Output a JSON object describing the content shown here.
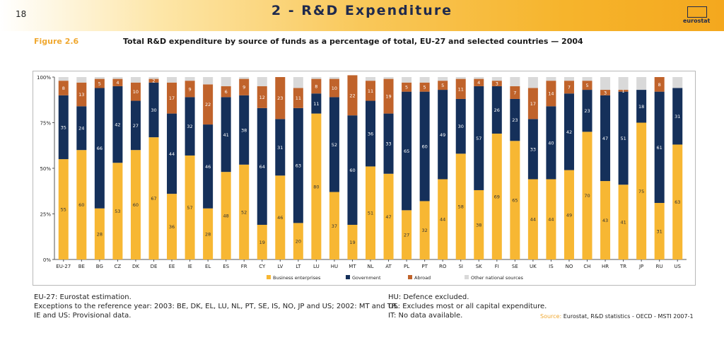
{
  "header": {
    "page_number": "18",
    "title": "2 - R&D Expenditure",
    "logo_text": "eurostat"
  },
  "figure": {
    "label": "Figure 2.6",
    "title": "Total R&D expenditure by source of funds as a percentage of total, EU-27 and selected countries — 2004"
  },
  "colors": {
    "business": "#f7b733",
    "government": "#15305a",
    "abroad": "#c0632b",
    "other": "#d9d9d9",
    "accent": "#f0a830"
  },
  "chart_data": {
    "type": "bar",
    "stacked": true,
    "categories": [
      "EU-27",
      "BE",
      "BG",
      "CZ",
      "DK",
      "DE",
      "EE",
      "IE",
      "EL",
      "ES",
      "FR",
      "CY",
      "LV",
      "LT",
      "LU",
      "HU",
      "MT",
      "NL",
      "AT",
      "PL",
      "PT",
      "RO",
      "SI",
      "SK",
      "FI",
      "SE",
      "UK",
      "IS",
      "NO",
      "CH",
      "HR",
      "TR",
      "JP",
      "RU",
      "US"
    ],
    "series": [
      {
        "name": "Business enterprises",
        "values": [
          55,
          60,
          28,
          53,
          60,
          67,
          36,
          57,
          28,
          48,
          52,
          19,
          46,
          20,
          80,
          37,
          19,
          51,
          47,
          27,
          32,
          44,
          58,
          38,
          69,
          65,
          44,
          44,
          49,
          70,
          43,
          41,
          75,
          31,
          63
        ]
      },
      {
        "name": "Government",
        "values": [
          35,
          24,
          66,
          42,
          27,
          30,
          44,
          32,
          46,
          41,
          38,
          64,
          31,
          63,
          11,
          52,
          60,
          36,
          33,
          65,
          60,
          49,
          30,
          57,
          26,
          23,
          33,
          40,
          42,
          23,
          47,
          51,
          18,
          61,
          31
        ]
      },
      {
        "name": "Abroad",
        "values": [
          8,
          13,
          5,
          4,
          10,
          2,
          17,
          9,
          22,
          6,
          9,
          12,
          23,
          11,
          8,
          10,
          22,
          11,
          19,
          5,
          5,
          5,
          11,
          4,
          3,
          7,
          17,
          14,
          7,
          5,
          3,
          1,
          0,
          8,
          0
        ]
      },
      {
        "name": "Other national sources",
        "values": [
          2,
          3,
          1,
          1,
          3,
          1,
          3,
          2,
          4,
          5,
          1,
          5,
          0,
          6,
          1,
          1,
          0,
          2,
          1,
          3,
          3,
          2,
          1,
          1,
          2,
          5,
          6,
          2,
          2,
          2,
          7,
          7,
          7,
          0,
          6
        ]
      }
    ],
    "value_labels": [
      [
        "55",
        "60",
        "28",
        "53",
        "60",
        "67",
        "36",
        "57",
        "28",
        "48",
        "52",
        "19",
        "46",
        "20",
        "80",
        "37",
        "19",
        "51",
        "47",
        "27",
        "32",
        "44",
        "58",
        "38",
        "69",
        "65",
        "44",
        "44",
        "49",
        "70",
        "43",
        "41",
        "75",
        "31",
        "63"
      ],
      [
        "35",
        "24",
        "66",
        "42",
        "27",
        "30",
        "44",
        "32",
        "46",
        "41",
        "38",
        "64",
        "31",
        "63",
        "11",
        "52",
        "60",
        "36",
        "33",
        "65",
        "60",
        "49",
        "30",
        "57",
        "26",
        "23",
        "33",
        "40",
        "42",
        "23",
        "47",
        "51",
        "18",
        "61",
        "31"
      ],
      [
        "8",
        "13",
        "5",
        "4",
        "10",
        "2",
        "17",
        "9",
        "22",
        "6",
        "9",
        "12",
        "23",
        "11",
        "8",
        "10",
        "22",
        "11",
        "19",
        "5",
        "5",
        "5",
        "11",
        "4",
        "3",
        "7",
        "17",
        "14",
        "7",
        "5",
        "3",
        "1",
        "0",
        "8",
        "0"
      ]
    ],
    "ylim": [
      0,
      100
    ],
    "yticks": [
      0,
      25,
      50,
      75,
      100
    ],
    "ytick_labels": [
      "0%",
      "25%",
      "50%",
      "75%",
      "100%"
    ],
    "legend": [
      "Business enterprises",
      "Government",
      "Abroad",
      "Other national sources"
    ],
    "legend_position": "bottom"
  },
  "notes": {
    "left": [
      "EU-27: Eurostat estimation.",
      "Exceptions to the reference year: 2003: BE, DK, EL, LU, NL, PT, SE, IS, NO, JP and US; 2002: MT and TR.",
      "IE and US: Provisional data."
    ],
    "right": [
      "HU: Defence excluded.",
      "US: Excludes most or all capital expenditure.",
      "IT: No data available."
    ]
  },
  "source": {
    "label": "Source:",
    "text": "Eurostat, R&D statistics - OECD - MSTI 2007-1"
  }
}
